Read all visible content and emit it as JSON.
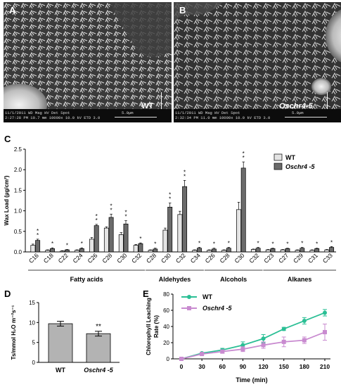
{
  "panel_a": {
    "letter": "A",
    "sample_label": "WT",
    "info_line1": "11/1/2011   WD     Mag    HV   Det Spot",
    "info_line2": "2:27:28 PM 10.7 mm 10000x 10.0 kV ETD  3.0",
    "scale_text": "5.0µm"
  },
  "panel_b": {
    "letter": "B",
    "sample_label": "Oschr4-5",
    "info_line1": "11/1/2011   WD     Mag    HV   Det Spot",
    "info_line2": "2:32:34 PM 11.0 mm 10000x 10.0 kV ETD  3.0",
    "scale_text": "5.0µm"
  },
  "panel_c_letter": "C",
  "panel_d_letter": "D",
  "panel_e_letter": "E",
  "colors": {
    "wt": "#e4e4e4",
    "mutant": "#6b6b6b",
    "bar_edge": "#000000",
    "d_bar": "#b3b3b3",
    "line_wt": "#2bbf95",
    "line_mut": "#c98bd0"
  },
  "chart_data": [
    {
      "type": "bar",
      "ylabel": "Wax Load (µg/cm²)",
      "ylim": [
        0,
        2.5
      ],
      "yticks": [
        "0.0",
        "0.5",
        "1.0",
        "1.5",
        "2.0",
        "2.5"
      ],
      "legend_position": "top-right",
      "categories": [
        "C16",
        "C18",
        "C22",
        "C24",
        "C26",
        "C28",
        "C30",
        "C32",
        "C28",
        "C30",
        "C32",
        "C34",
        "C26",
        "C28",
        "C30",
        "C32",
        "C23",
        "C27",
        "C29",
        "C31",
        "C33"
      ],
      "groups": [
        {
          "label": "Fatty acids",
          "start": 0,
          "end": 7
        },
        {
          "label": "Aldehydes",
          "start": 8,
          "end": 11
        },
        {
          "label": "Alcohols",
          "start": 12,
          "end": 15
        },
        {
          "label": "Alkanes",
          "start": 16,
          "end": 20
        }
      ],
      "series": [
        {
          "name": "WT",
          "values": [
            0.16,
            0.04,
            0.02,
            0.04,
            0.31,
            0.58,
            0.42,
            0.16,
            0.04,
            0.53,
            0.91,
            0.04,
            0.04,
            0.04,
            1.03,
            0.06,
            0.05,
            0.05,
            0.04,
            0.04,
            0.05
          ],
          "errors": [
            0.03,
            0.01,
            0.01,
            0.01,
            0.04,
            0.03,
            0.05,
            0.02,
            0.01,
            0.05,
            0.08,
            0.01,
            0.01,
            0.01,
            0.18,
            0.01,
            0.01,
            0.01,
            0.01,
            0.01,
            0.01
          ]
        },
        {
          "name": "Oschr4 -5",
          "values": [
            0.28,
            0.08,
            0.05,
            0.08,
            0.64,
            0.84,
            0.68,
            0.2,
            0.07,
            1.09,
            1.59,
            0.09,
            0.07,
            0.09,
            2.04,
            0.09,
            0.08,
            0.08,
            0.09,
            0.08,
            0.11
          ],
          "errors": [
            0.03,
            0.02,
            0.01,
            0.02,
            0.03,
            0.08,
            0.08,
            0.02,
            0.02,
            0.1,
            0.15,
            0.02,
            0.02,
            0.02,
            0.15,
            0.02,
            0.01,
            0.01,
            0.02,
            0.01,
            0.02
          ]
        }
      ],
      "significance": [
        "**",
        "*",
        "*",
        "*",
        "**",
        "**",
        "**",
        "*",
        "*",
        "**",
        "**",
        "*",
        "*",
        "*",
        "**",
        "*",
        "*",
        "*",
        "*",
        "*",
        "*"
      ]
    },
    {
      "type": "bar",
      "ylabel": "Ts/mmol H₂O m⁻²s⁻¹",
      "ylim": [
        0,
        15
      ],
      "yticks": [
        "0",
        "5",
        "10",
        "15"
      ],
      "categories": [
        "WT",
        "Oschr4 -5"
      ],
      "values": [
        9.7,
        7.2
      ],
      "errors": [
        0.6,
        0.6
      ],
      "significance": [
        "",
        "**"
      ]
    },
    {
      "type": "line",
      "xlabel": "Time (min)",
      "ylabel": "Chlorophyll Leaching Rate (%)",
      "xlim": [
        0,
        210
      ],
      "ylim": [
        0,
        80
      ],
      "x": [
        0,
        30,
        60,
        90,
        120,
        150,
        180,
        210
      ],
      "yticks": [
        "0",
        "20",
        "40",
        "60",
        "80"
      ],
      "legend_position": "top-left",
      "series": [
        {
          "name": "WT",
          "values": [
            0,
            7,
            11,
            17,
            25,
            37,
            47,
            57
          ],
          "errors": [
            0,
            1,
            2,
            4,
            5,
            2,
            4,
            4
          ]
        },
        {
          "name": "Oschr4 -5",
          "values": [
            0,
            6,
            9,
            12,
            17,
            21,
            23,
            33
          ],
          "errors": [
            0,
            1,
            2,
            3,
            4,
            6,
            4,
            10
          ]
        }
      ]
    }
  ]
}
